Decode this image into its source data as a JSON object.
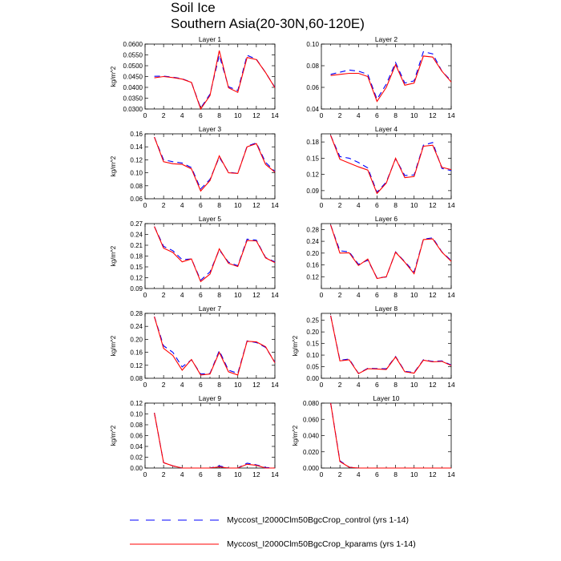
{
  "title": [
    "Soil Ice",
    "Southern Asia(20-30N,60-120E)"
  ],
  "legend": [
    {
      "label": "Myccost_I2000Clm50BgcCrop_control (yrs 1-14)",
      "color": "#0000ff",
      "dash": "dashed"
    },
    {
      "label": "Myccost_I2000Clm50BgcCrop_kparams (yrs 1-14)",
      "color": "#ff0000",
      "dash": "solid"
    }
  ],
  "chart_data": [
    {
      "type": "line",
      "title": "Layer 1",
      "ylabel": "kg/m^2",
      "xlim": [
        0,
        14
      ],
      "ylim": [
        0.03,
        0.06
      ],
      "xticks": [
        0,
        2,
        4,
        6,
        8,
        10,
        12,
        14
      ],
      "yticks": [
        0.03,
        0.035,
        0.04,
        0.045,
        0.05,
        0.055,
        0.06
      ],
      "ytick_labels": [
        "0.0300",
        "0.0350",
        "0.0400",
        "0.0450",
        "0.0500",
        "0.0550",
        "0.0600"
      ],
      "x": [
        1,
        2,
        3,
        4,
        5,
        6,
        7,
        8,
        9,
        10,
        11,
        12,
        13,
        14
      ],
      "series": [
        {
          "name": "Myccost_I2000Clm50BgcCrop_control (yrs 1-14)",
          "values": [
            0.0451,
            0.0452,
            0.0447,
            0.044,
            0.0423,
            0.0304,
            0.0368,
            0.0548,
            0.0403,
            0.0385,
            0.0548,
            0.053,
            0.0468,
            0.04
          ]
        },
        {
          "name": "Myccost_I2000Clm50BgcCrop_kparams (yrs 1-14)",
          "values": [
            0.0444,
            0.045,
            0.0445,
            0.0438,
            0.0423,
            0.03,
            0.0362,
            0.057,
            0.0398,
            0.0377,
            0.0538,
            0.0528,
            0.0468,
            0.0398
          ]
        }
      ]
    },
    {
      "type": "line",
      "title": "Layer 2",
      "ylabel": "",
      "xlim": [
        0,
        14
      ],
      "ylim": [
        0.04,
        0.1
      ],
      "xticks": [
        0,
        2,
        4,
        6,
        8,
        10,
        12,
        14
      ],
      "yticks": [
        0.04,
        0.06,
        0.08,
        0.1
      ],
      "ytick_labels": [
        "0.04",
        "0.06",
        "0.08",
        "0.10"
      ],
      "x": [
        1,
        2,
        3,
        4,
        5,
        6,
        7,
        8,
        9,
        10,
        11,
        12,
        13,
        14
      ],
      "series": [
        {
          "name": "Myccost_I2000Clm50BgcCrop_control (yrs 1-14)",
          "values": [
            0.072,
            0.074,
            0.076,
            0.075,
            0.072,
            0.049,
            0.063,
            0.083,
            0.064,
            0.066,
            0.093,
            0.091,
            0.075,
            0.066
          ]
        },
        {
          "name": "Myccost_I2000Clm50BgcCrop_kparams (yrs 1-14)",
          "values": [
            0.071,
            0.072,
            0.073,
            0.073,
            0.07,
            0.047,
            0.06,
            0.081,
            0.062,
            0.064,
            0.089,
            0.088,
            0.075,
            0.065
          ]
        }
      ]
    },
    {
      "type": "line",
      "title": "Layer 3",
      "ylabel": "kg/m^2",
      "xlim": [
        0,
        14
      ],
      "ylim": [
        0.06,
        0.16
      ],
      "xticks": [
        0,
        2,
        4,
        6,
        8,
        10,
        12,
        14
      ],
      "yticks": [
        0.06,
        0.08,
        0.1,
        0.12,
        0.14,
        0.16
      ],
      "ytick_labels": [
        "0.06",
        "0.08",
        "0.10",
        "0.12",
        "0.14",
        "0.16"
      ],
      "x": [
        1,
        2,
        3,
        4,
        5,
        6,
        7,
        8,
        9,
        10,
        11,
        12,
        13,
        14
      ],
      "series": [
        {
          "name": "Myccost_I2000Clm50BgcCrop_control (yrs 1-14)",
          "values": [
            0.155,
            0.12,
            0.117,
            0.115,
            0.108,
            0.075,
            0.09,
            0.124,
            0.101,
            0.099,
            0.141,
            0.146,
            0.116,
            0.102
          ]
        },
        {
          "name": "Myccost_I2000Clm50BgcCrop_kparams (yrs 1-14)",
          "values": [
            0.155,
            0.117,
            0.114,
            0.113,
            0.106,
            0.072,
            0.088,
            0.126,
            0.1,
            0.099,
            0.14,
            0.145,
            0.113,
            0.101
          ]
        }
      ]
    },
    {
      "type": "line",
      "title": "Layer 4",
      "ylabel": "",
      "xlim": [
        0,
        14
      ],
      "ylim": [
        0.075,
        0.195
      ],
      "xticks": [
        0,
        2,
        4,
        6,
        8,
        10,
        12,
        14
      ],
      "yticks": [
        0.09,
        0.12,
        0.15,
        0.18
      ],
      "ytick_labels": [
        "0.09",
        "0.12",
        "0.15",
        "0.18"
      ],
      "x": [
        1,
        2,
        3,
        4,
        5,
        6,
        7,
        8,
        9,
        10,
        11,
        12,
        13,
        14
      ],
      "series": [
        {
          "name": "Myccost_I2000Clm50BgcCrop_control (yrs 1-14)",
          "values": [
            0.192,
            0.153,
            0.15,
            0.142,
            0.132,
            0.087,
            0.106,
            0.149,
            0.118,
            0.119,
            0.174,
            0.179,
            0.131,
            0.127
          ]
        },
        {
          "name": "Myccost_I2000Clm50BgcCrop_kparams (yrs 1-14)",
          "values": [
            0.192,
            0.148,
            0.141,
            0.134,
            0.128,
            0.085,
            0.104,
            0.15,
            0.114,
            0.116,
            0.172,
            0.174,
            0.133,
            0.129
          ]
        }
      ]
    },
    {
      "type": "line",
      "title": "Layer 5",
      "ylabel": "kg/m^2",
      "xlim": [
        0,
        14
      ],
      "ylim": [
        0.09,
        0.27
      ],
      "xticks": [
        0,
        2,
        4,
        6,
        8,
        10,
        12,
        14
      ],
      "yticks": [
        0.09,
        0.12,
        0.15,
        0.18,
        0.21,
        0.24,
        0.27
      ],
      "ytick_labels": [
        "0.09",
        "0.12",
        "0.15",
        "0.18",
        "0.21",
        "0.24",
        "0.27"
      ],
      "x": [
        1,
        2,
        3,
        4,
        5,
        6,
        7,
        8,
        9,
        10,
        11,
        12,
        13,
        14
      ],
      "series": [
        {
          "name": "Myccost_I2000Clm50BgcCrop_control (yrs 1-14)",
          "values": [
            0.262,
            0.207,
            0.195,
            0.17,
            0.172,
            0.113,
            0.136,
            0.197,
            0.163,
            0.153,
            0.227,
            0.224,
            0.176,
            0.164
          ]
        },
        {
          "name": "Myccost_I2000Clm50BgcCrop_kparams (yrs 1-14)",
          "values": [
            0.262,
            0.202,
            0.19,
            0.164,
            0.172,
            0.109,
            0.13,
            0.2,
            0.16,
            0.151,
            0.223,
            0.222,
            0.175,
            0.162
          ]
        }
      ]
    },
    {
      "type": "line",
      "title": "Layer 6",
      "ylabel": "",
      "xlim": [
        0,
        14
      ],
      "ylim": [
        0.08,
        0.3
      ],
      "xticks": [
        0,
        2,
        4,
        6,
        8,
        10,
        12,
        14
      ],
      "yticks": [
        0.12,
        0.16,
        0.2,
        0.24,
        0.28
      ],
      "ytick_labels": [
        "0.12",
        "0.16",
        "0.20",
        "0.24",
        "0.28"
      ],
      "x": [
        1,
        2,
        3,
        4,
        5,
        6,
        7,
        8,
        9,
        10,
        11,
        12,
        13,
        14
      ],
      "series": [
        {
          "name": "Myccost_I2000Clm50BgcCrop_control (yrs 1-14)",
          "values": [
            0.295,
            0.208,
            0.204,
            0.162,
            0.176,
            0.116,
            0.119,
            0.204,
            0.171,
            0.136,
            0.247,
            0.252,
            0.204,
            0.175
          ]
        },
        {
          "name": "Myccost_I2000Clm50BgcCrop_kparams (yrs 1-14)",
          "values": [
            0.295,
            0.2,
            0.201,
            0.158,
            0.18,
            0.114,
            0.12,
            0.203,
            0.169,
            0.13,
            0.246,
            0.248,
            0.203,
            0.172
          ]
        }
      ]
    },
    {
      "type": "line",
      "title": "Layer 7",
      "ylabel": "kg/m^2",
      "xlim": [
        0,
        14
      ],
      "ylim": [
        0.08,
        0.28
      ],
      "xticks": [
        0,
        2,
        4,
        6,
        8,
        10,
        12,
        14
      ],
      "yticks": [
        0.08,
        0.12,
        0.16,
        0.2,
        0.24,
        0.28
      ],
      "ytick_labels": [
        "0.08",
        "0.12",
        "0.16",
        "0.20",
        "0.24",
        "0.28"
      ],
      "x": [
        1,
        2,
        3,
        4,
        5,
        6,
        7,
        8,
        9,
        10,
        11,
        12,
        13,
        14
      ],
      "series": [
        {
          "name": "Myccost_I2000Clm50BgcCrop_control (yrs 1-14)",
          "values": [
            0.27,
            0.18,
            0.16,
            0.115,
            0.137,
            0.093,
            0.095,
            0.165,
            0.105,
            0.095,
            0.195,
            0.19,
            0.175,
            0.13
          ]
        },
        {
          "name": "Myccost_I2000Clm50BgcCrop_kparams (yrs 1-14)",
          "values": [
            0.27,
            0.172,
            0.15,
            0.105,
            0.138,
            0.09,
            0.093,
            0.16,
            0.1,
            0.09,
            0.194,
            0.192,
            0.177,
            0.128
          ]
        }
      ]
    },
    {
      "type": "line",
      "title": "Layer 8",
      "ylabel": "kg/m^2",
      "xlim": [
        0,
        14
      ],
      "ylim": [
        0,
        0.28
      ],
      "xticks": [
        0,
        2,
        4,
        6,
        8,
        10,
        12,
        14
      ],
      "yticks": [
        0,
        0.05,
        0.1,
        0.15,
        0.2,
        0.25
      ],
      "ytick_labels": [
        "0.00",
        "0.05",
        "0.10",
        "0.15",
        "0.20",
        "0.25"
      ],
      "x": [
        1,
        2,
        3,
        4,
        5,
        6,
        7,
        8,
        9,
        10,
        11,
        12,
        13,
        14
      ],
      "series": [
        {
          "name": "Myccost_I2000Clm50BgcCrop_control (yrs 1-14)",
          "values": [
            0.27,
            0.078,
            0.083,
            0.021,
            0.043,
            0.042,
            0.041,
            0.094,
            0.03,
            0.025,
            0.08,
            0.073,
            0.075,
            0.057
          ]
        },
        {
          "name": "Myccost_I2000Clm50BgcCrop_kparams (yrs 1-14)",
          "values": [
            0.27,
            0.075,
            0.08,
            0.02,
            0.041,
            0.04,
            0.038,
            0.092,
            0.028,
            0.022,
            0.078,
            0.071,
            0.073,
            0.055
          ]
        }
      ]
    },
    {
      "type": "line",
      "title": "Layer 9",
      "ylabel": "kg/m^2",
      "xlim": [
        0,
        14
      ],
      "ylim": [
        0,
        0.12
      ],
      "xticks": [
        0,
        2,
        4,
        6,
        8,
        10,
        12,
        14
      ],
      "yticks": [
        0,
        0.02,
        0.04,
        0.06,
        0.08,
        0.1,
        0.12
      ],
      "ytick_labels": [
        "0.00",
        "0.02",
        "0.04",
        "0.06",
        "0.08",
        "0.10",
        "0.12"
      ],
      "x": [
        1,
        2,
        3,
        4,
        5,
        6,
        7,
        8,
        9,
        10,
        11,
        12,
        13,
        14
      ],
      "series": [
        {
          "name": "Myccost_I2000Clm50BgcCrop_control (yrs 1-14)",
          "values": [
            0.102,
            0.01,
            0.004,
            0.0,
            0.0,
            0.0,
            0.0,
            0.004,
            0.0,
            0.0,
            0.009,
            0.006,
            0.001,
            0.0
          ]
        },
        {
          "name": "Myccost_I2000Clm50BgcCrop_kparams (yrs 1-14)",
          "values": [
            0.102,
            0.01,
            0.004,
            0.0,
            0.0,
            0.0,
            0.0,
            0.002,
            0.0,
            0.0,
            0.007,
            0.005,
            0.0,
            0.0
          ]
        }
      ]
    },
    {
      "type": "line",
      "title": "Layer 10",
      "ylabel": "kg/m^2",
      "xlim": [
        0,
        14
      ],
      "ylim": [
        0,
        0.08
      ],
      "xticks": [
        0,
        2,
        4,
        6,
        8,
        10,
        12,
        14
      ],
      "yticks": [
        0,
        0.02,
        0.04,
        0.06,
        0.08
      ],
      "ytick_labels": [
        "0.000",
        "0.020",
        "0.040",
        "0.060",
        "0.080"
      ],
      "x": [
        1,
        2,
        3,
        4,
        5,
        6,
        7,
        8,
        9,
        10,
        11,
        12,
        13,
        14
      ],
      "series": [
        {
          "name": "Myccost_I2000Clm50BgcCrop_control (yrs 1-14)",
          "values": [
            0.08,
            0.009,
            0.001,
            0.0,
            0.0,
            0.0,
            0.0,
            0.0,
            0.0,
            0.0,
            0.0,
            0.0,
            0.0,
            0.0
          ]
        },
        {
          "name": "Myccost_I2000Clm50BgcCrop_kparams (yrs 1-14)",
          "values": [
            0.08,
            0.008,
            0.001,
            0.0,
            0.0,
            0.0,
            0.0,
            0.0,
            0.0,
            0.0,
            0.0,
            0.0,
            0.0,
            0.0
          ]
        }
      ]
    }
  ]
}
